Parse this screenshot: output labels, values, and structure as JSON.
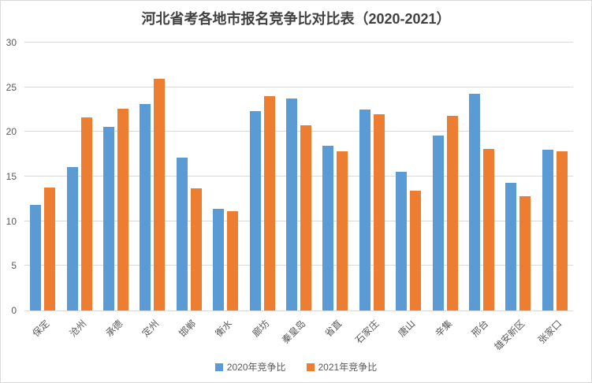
{
  "chart_data": {
    "type": "bar",
    "title": "河北省考各地市报名竞争比对比表（2020-2021）",
    "categories": [
      "保定",
      "沧州",
      "承德",
      "定州",
      "邯郸",
      "衡水",
      "廊坊",
      "秦皇岛",
      "省直",
      "石家庄",
      "唐山",
      "辛集",
      "邢台",
      "雄安新区",
      "张家口"
    ],
    "series": [
      {
        "name": "2020年竞争比",
        "color": "#5B9BD5",
        "values": [
          11.8,
          16.1,
          20.6,
          23.1,
          17.1,
          11.4,
          22.3,
          23.7,
          18.4,
          22.5,
          15.5,
          19.6,
          24.3,
          14.3,
          18.0
        ]
      },
      {
        "name": "2021年竞争比",
        "color": "#ED7D31",
        "values": [
          13.8,
          21.6,
          22.6,
          25.9,
          13.7,
          11.1,
          24.0,
          20.7,
          17.8,
          22.0,
          13.4,
          21.8,
          18.1,
          12.8,
          17.8
        ]
      }
    ],
    "xlabel": "",
    "ylabel": "",
    "ylim": [
      0,
      30
    ],
    "yticks": [
      0,
      5,
      10,
      15,
      20,
      25,
      30
    ],
    "grid": true,
    "legend_position": "bottom"
  },
  "style": {
    "grid_color": "#D9D9D9",
    "axis_text_color": "#595959",
    "title_color": "#404040",
    "background": "#FFFFFF"
  }
}
